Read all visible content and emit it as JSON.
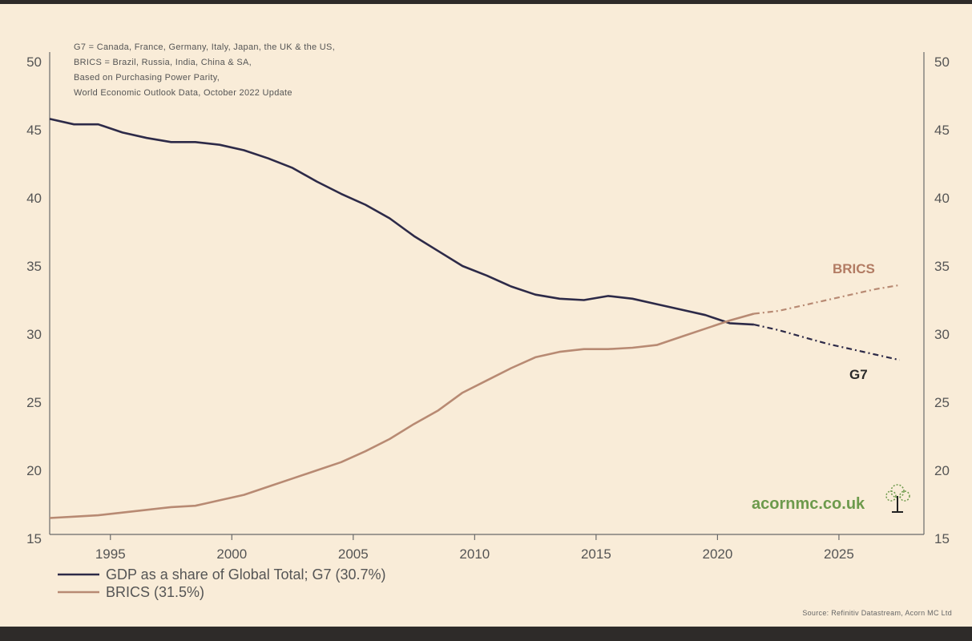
{
  "chart_data": {
    "type": "line",
    "notes": [
      "G7 = Canada, France, Germany, Italy, Japan, the UK & the US,",
      "BRICS = Brazil, Russia, India, China & SA,",
      "Based on Purchasing Power Parity,",
      "World Economic Outlook Data, October 2022 Update"
    ],
    "xlim": [
      1992.5,
      2028.5
    ],
    "ylim": [
      15,
      50
    ],
    "x_ticks": [
      "1995",
      "2000",
      "2005",
      "2010",
      "2015",
      "2020",
      "2025"
    ],
    "y_ticks": [
      "15",
      "20",
      "25",
      "30",
      "35",
      "40",
      "45",
      "50"
    ],
    "forecast_start": 2022,
    "series": [
      {
        "name": "G7",
        "color": "#2d2a48",
        "x": [
          1992.5,
          1993.5,
          1994.5,
          1995.5,
          1996.5,
          1997.5,
          1998.5,
          1999.5,
          2000.5,
          2001.5,
          2002.5,
          2003.5,
          2004.5,
          2005.5,
          2006.5,
          2007.5,
          2008.5,
          2009.5,
          2010.5,
          2011.5,
          2012.5,
          2013.5,
          2014.5,
          2015.5,
          2016.5,
          2017.5,
          2018.5,
          2019.5,
          2020.5,
          2021.5,
          2022.5,
          2023.5,
          2024.5,
          2025.5,
          2026.5,
          2027.5
        ],
        "values": [
          45.8,
          45.4,
          45.4,
          44.8,
          44.4,
          44.1,
          44.1,
          43.9,
          43.5,
          42.9,
          42.2,
          41.2,
          40.3,
          39.5,
          38.5,
          37.2,
          36.1,
          35.0,
          34.3,
          33.5,
          32.9,
          32.6,
          32.5,
          32.8,
          32.6,
          32.2,
          31.8,
          31.4,
          30.8,
          30.7,
          30.3,
          29.8,
          29.3,
          28.9,
          28.5,
          28.1
        ]
      },
      {
        "name": "BRICS",
        "color": "#b88a73",
        "x": [
          1992.5,
          1993.5,
          1994.5,
          1995.5,
          1996.5,
          1997.5,
          1998.5,
          1999.5,
          2000.5,
          2001.5,
          2002.5,
          2003.5,
          2004.5,
          2005.5,
          2006.5,
          2007.5,
          2008.5,
          2009.5,
          2010.5,
          2011.5,
          2012.5,
          2013.5,
          2014.5,
          2015.5,
          2016.5,
          2017.5,
          2018.5,
          2019.5,
          2020.5,
          2021.5,
          2022.5,
          2023.5,
          2024.5,
          2025.5,
          2026.5,
          2027.5
        ],
        "values": [
          16.5,
          16.6,
          16.7,
          16.9,
          17.1,
          17.3,
          17.4,
          17.8,
          18.2,
          18.8,
          19.4,
          20.0,
          20.6,
          21.4,
          22.3,
          23.4,
          24.4,
          25.7,
          26.6,
          27.5,
          28.3,
          28.7,
          28.9,
          28.9,
          29.0,
          29.2,
          29.8,
          30.4,
          31.0,
          31.5,
          31.7,
          32.1,
          32.5,
          32.9,
          33.3,
          33.6
        ]
      }
    ],
    "series_labels": {
      "brics": "BRICS",
      "g7": "G7"
    },
    "legend": {
      "position": "bottom-left",
      "g7": "GDP as a share of Global Total; G7 (30.7%)",
      "brics": "BRICS (31.5%)"
    }
  },
  "brand": "acornmc.co.uk",
  "source": "Source: Refinitiv Datastream, Acorn MC Ltd",
  "colors": {
    "background": "#f9ecd8",
    "g7": "#2d2a48",
    "brics": "#b88a73",
    "brand": "#6d9a4c"
  }
}
